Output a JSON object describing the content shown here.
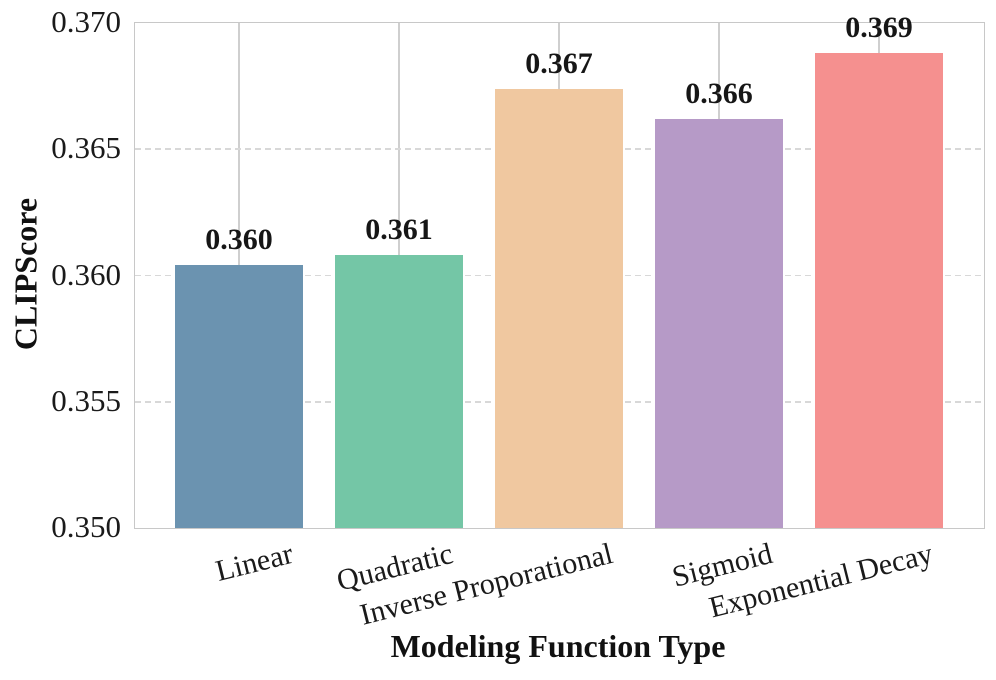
{
  "chart_data": {
    "type": "bar",
    "title": "",
    "xlabel": "Modeling Function Type",
    "ylabel": "CLIPScore",
    "categories": [
      "Linear",
      "Quadratic",
      "Inverse Proporational",
      "Sigmoid",
      "Exponential Decay"
    ],
    "values": [
      0.3604,
      0.3608,
      0.3674,
      0.3662,
      0.3688
    ],
    "bar_labels": [
      "0.360",
      "0.361",
      "0.367",
      "0.366",
      "0.369"
    ],
    "bar_colors": [
      "#6b93b0",
      "#74c6a6",
      "#f0c8a0",
      "#b69ac7",
      "#f5908f"
    ],
    "ylim": [
      0.35,
      0.37
    ],
    "ytick_values": [
      0.37,
      0.365,
      0.36,
      0.355,
      0.35
    ],
    "ytick_labels": [
      "0.370",
      "0.365",
      "0.360",
      "0.355",
      "0.350"
    ],
    "legend": "none",
    "grid": {
      "horizontal": "dashed light gray at y ticks",
      "vertical": "solid light gray at bar centers",
      "grid_h_color": "#d8d8d8",
      "grid_v_color": "#cfcfcf",
      "spine_color": "#c8c8c8"
    },
    "text_color": "#1a1a1a",
    "background_color": "#ffffff"
  }
}
